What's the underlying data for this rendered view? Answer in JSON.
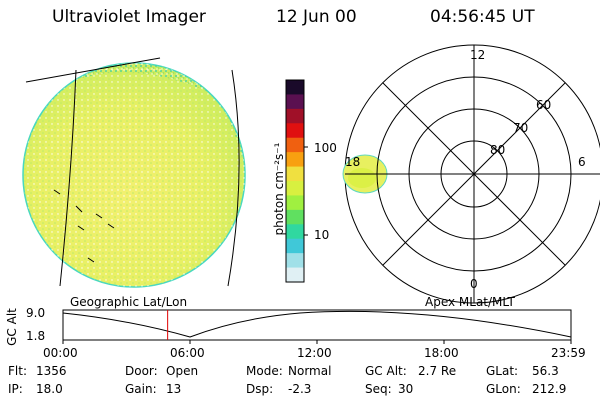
{
  "header": {
    "instrument": "Ultraviolet Imager",
    "date": "12 Jun 00",
    "time": "04:56:45 UT"
  },
  "colorbar": {
    "unit_label": "photon cm⁻²s⁻¹",
    "ticks": [
      "100",
      "10"
    ],
    "colors": [
      "#1a0a2a",
      "#5a1050",
      "#a01028",
      "#e01010",
      "#f06010",
      "#f8a010",
      "#f0e040",
      "#d8f040",
      "#a0f040",
      "#60e060",
      "#30d8a0",
      "#40c8d8",
      "#a0e0e8",
      "#e0f0f4"
    ]
  },
  "polar_plot": {
    "lat_labels": [
      "60",
      "70",
      "80"
    ],
    "mlt_labels": {
      "top": "12",
      "bottom": "0",
      "left": "18",
      "right": "6"
    }
  },
  "panel_labels": {
    "left": "Geographic Lat/Lon",
    "right": "Apex MLat/MLT"
  },
  "timeline": {
    "y_axis_title": "GC Alt",
    "y_ticks": [
      "9.0",
      "1.8"
    ],
    "x_ticks": [
      "00:00",
      "06:00",
      "12:00",
      "18:00",
      "23:59"
    ],
    "current_time_fraction": 0.206,
    "marker_color": "#e00000"
  },
  "status": {
    "row1": [
      {
        "key": "Flt:",
        "value": "1356"
      },
      {
        "key": "Door:",
        "value": "Open"
      },
      {
        "key": "Mode:",
        "value": "Normal"
      },
      {
        "key": "GC Alt:",
        "value": "2.7 Re"
      },
      {
        "key": "GLat:",
        "value": "56.3"
      }
    ],
    "row2": [
      {
        "key": "IP:",
        "value": "18.0"
      },
      {
        "key": "Gain:",
        "value": "13"
      },
      {
        "key": "Dsp:",
        "value": "-2.3"
      },
      {
        "key": "Seq:",
        "value": "30"
      },
      {
        "key": "GLon:",
        "value": "212.9"
      }
    ]
  }
}
